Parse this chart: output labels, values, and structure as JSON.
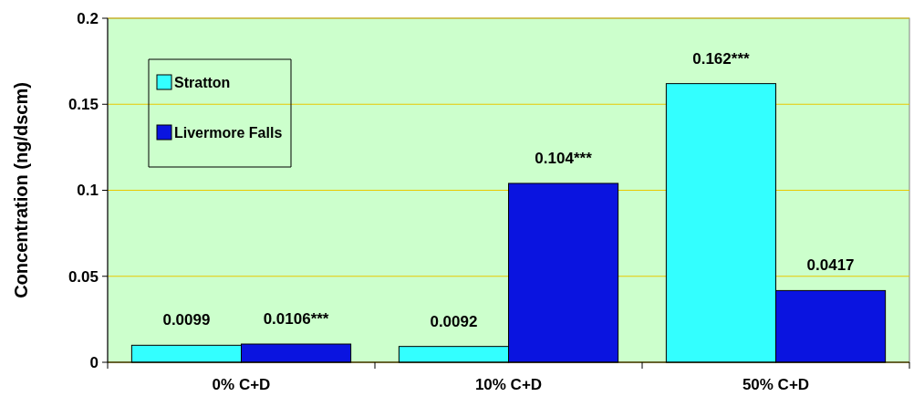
{
  "chart_data": {
    "type": "bar",
    "ylabel": "Concentration (ng/dscm)",
    "categories": [
      "0% C+D",
      "10% C+D",
      "50% C+D"
    ],
    "series": [
      {
        "name": "Stratton",
        "color": "#33ffff",
        "values": [
          0.0099,
          0.0092,
          0.162
        ],
        "value_labels": [
          "0.0099",
          "0.0092",
          "0.162***"
        ]
      },
      {
        "name": "Livermore Falls",
        "color": "#0a14e0",
        "values": [
          0.0106,
          0.104,
          0.0417
        ],
        "value_labels": [
          "0.0106***",
          "0.104***",
          "0.0417"
        ]
      }
    ],
    "ylim": [
      0,
      0.2
    ],
    "yticks": [
      0,
      0.05,
      0.1,
      0.15,
      0.2
    ],
    "grid": "y",
    "legend": "top left"
  }
}
